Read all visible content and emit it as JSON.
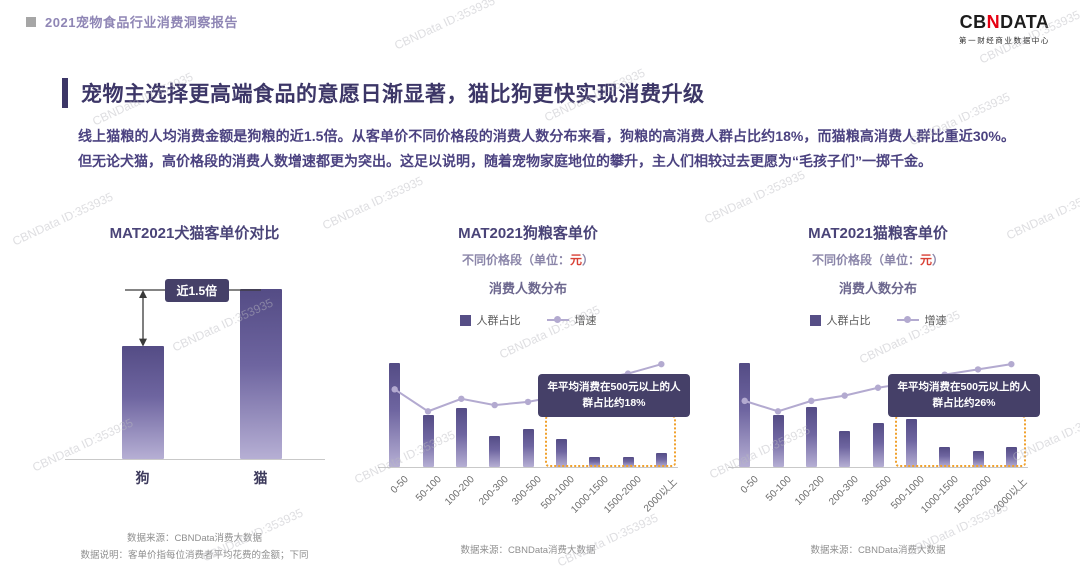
{
  "header": {
    "report_title": "2021宠物食品行业消费洞察报告",
    "logo_cb": "CB",
    "logo_n": "N",
    "logo_data": "DATA",
    "logo_subtitle": "第一财经商业数据中心"
  },
  "watermark": {
    "text": "CBNData ID:353935"
  },
  "main": {
    "title": "宠物主选择更高端食品的意愿日渐显著，猫比狗更快实现消费升级",
    "paragraph": "线上猫粮的人均消费金额是狗粮的近1.5倍。从客单价不同价格段的消费人数分布来看，狗粮的高消费人群占比约18%，而猫粮高消费人群比重近30%。但无论犬猫，高价格段的消费人数增速都更为突出。这足以说明，随着宠物家庭地位的攀升，主人们相较过去更愿为“毛孩子们”一掷千金。"
  },
  "colors": {
    "accent_purple": "#544c85",
    "line_purple": "#b3aad0",
    "dark_label_bg": "#454068",
    "highlight_orange": "#f0a02c",
    "logo_red": "#e60012",
    "title_dark": "#3c3667"
  },
  "chart_data": [
    {
      "type": "bar",
      "title": "MAT2021犬猫客单价对比",
      "categories": [
        "狗",
        "猫"
      ],
      "values": [
        1,
        1.5
      ],
      "annotation": "近1.5倍",
      "source": "数据来源：CBNData消费大数据",
      "note": "数据说明：客单价指每位消费者平均花费的金额；下同"
    },
    {
      "type": "bar+line",
      "title": "MAT2021狗粮客单价",
      "subtitle_a": "不同价格段（单位：",
      "subtitle_unit": "元",
      "subtitle_b": "）",
      "subtitle2": "消费人数分布",
      "legend": [
        "人群占比",
        "增速"
      ],
      "categories": [
        "0-50",
        "50-100",
        "100-200",
        "200-300",
        "300-500",
        "500-1000",
        "1000-1500",
        "1500-2000",
        "2000以上"
      ],
      "series": [
        {
          "name": "人群占比",
          "type": "bar",
          "unit": "%",
          "values": [
            30,
            15,
            17,
            9,
            11,
            8,
            3,
            3,
            4
          ]
        },
        {
          "name": "增速",
          "type": "line",
          "unit": "估算指数",
          "values": [
            55,
            48,
            52,
            50,
            51,
            53,
            58,
            60,
            63
          ]
        }
      ],
      "highlight": {
        "from_index": 5,
        "to_index": 8
      },
      "callout": "年平均消费在500元以上的人群占比约18%",
      "source": "数据来源：CBNData消费大数据"
    },
    {
      "type": "bar+line",
      "title": "MAT2021猫粮客单价",
      "subtitle_a": "不同价格段（单位：",
      "subtitle_unit": "元",
      "subtitle_b": "）",
      "subtitle2": "消费人数分布",
      "legend": [
        "人群占比",
        "增速"
      ],
      "categories": [
        "0-50",
        "50-100",
        "100-200",
        "200-300",
        "300-500",
        "500-1000",
        "1000-1500",
        "1500-2000",
        "2000以上"
      ],
      "series": [
        {
          "name": "人群占比",
          "type": "bar",
          "unit": "%",
          "values": [
            26,
            13,
            15,
            9,
            11,
            12,
            5,
            4,
            5
          ]
        },
        {
          "name": "增速",
          "type": "line",
          "unit": "估算指数",
          "values": [
            50,
            46,
            50,
            52,
            55,
            57,
            60,
            62,
            64
          ]
        }
      ],
      "highlight": {
        "from_index": 5,
        "to_index": 8
      },
      "callout": "年平均消费在500元以上的人群占比约26%",
      "source": "数据来源：CBNData消费大数据"
    }
  ]
}
